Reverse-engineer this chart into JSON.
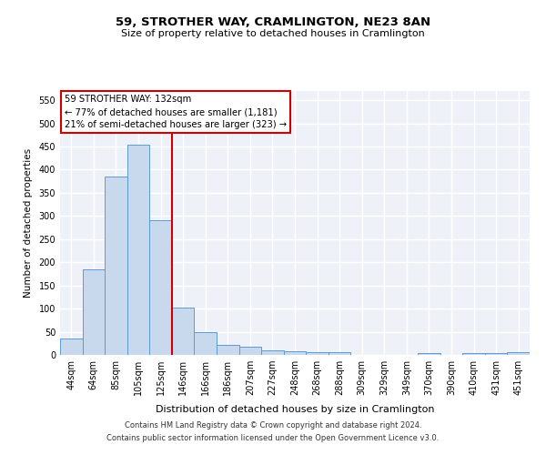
{
  "title": "59, STROTHER WAY, CRAMLINGTON, NE23 8AN",
  "subtitle": "Size of property relative to detached houses in Cramlington",
  "xlabel": "Distribution of detached houses by size in Cramlington",
  "ylabel": "Number of detached properties",
  "categories": [
    "44sqm",
    "64sqm",
    "85sqm",
    "105sqm",
    "125sqm",
    "146sqm",
    "166sqm",
    "186sqm",
    "207sqm",
    "227sqm",
    "248sqm",
    "268sqm",
    "288sqm",
    "309sqm",
    "329sqm",
    "349sqm",
    "370sqm",
    "390sqm",
    "410sqm",
    "431sqm",
    "451sqm"
  ],
  "values": [
    35,
    185,
    385,
    455,
    290,
    103,
    50,
    21,
    18,
    10,
    8,
    5,
    5,
    0,
    0,
    0,
    3,
    0,
    3,
    3,
    5
  ],
  "bar_color": "#c8d9ee",
  "bar_edge_color": "#5b9bd5",
  "vline_x": 4.5,
  "vline_color": "#cc0000",
  "annotation_text": "59 STROTHER WAY: 132sqm\n← 77% of detached houses are smaller (1,181)\n21% of semi-detached houses are larger (323) →",
  "annotation_box_color": "#ffffff",
  "annotation_box_edge_color": "#cc0000",
  "footnote1": "Contains HM Land Registry data © Crown copyright and database right 2024.",
  "footnote2": "Contains public sector information licensed under the Open Government Licence v3.0.",
  "ylim": [
    0,
    570
  ],
  "yticks": [
    0,
    50,
    100,
    150,
    200,
    250,
    300,
    350,
    400,
    450,
    500,
    550
  ],
  "background_color": "#ffffff",
  "plot_bg_color": "#eef2f8"
}
